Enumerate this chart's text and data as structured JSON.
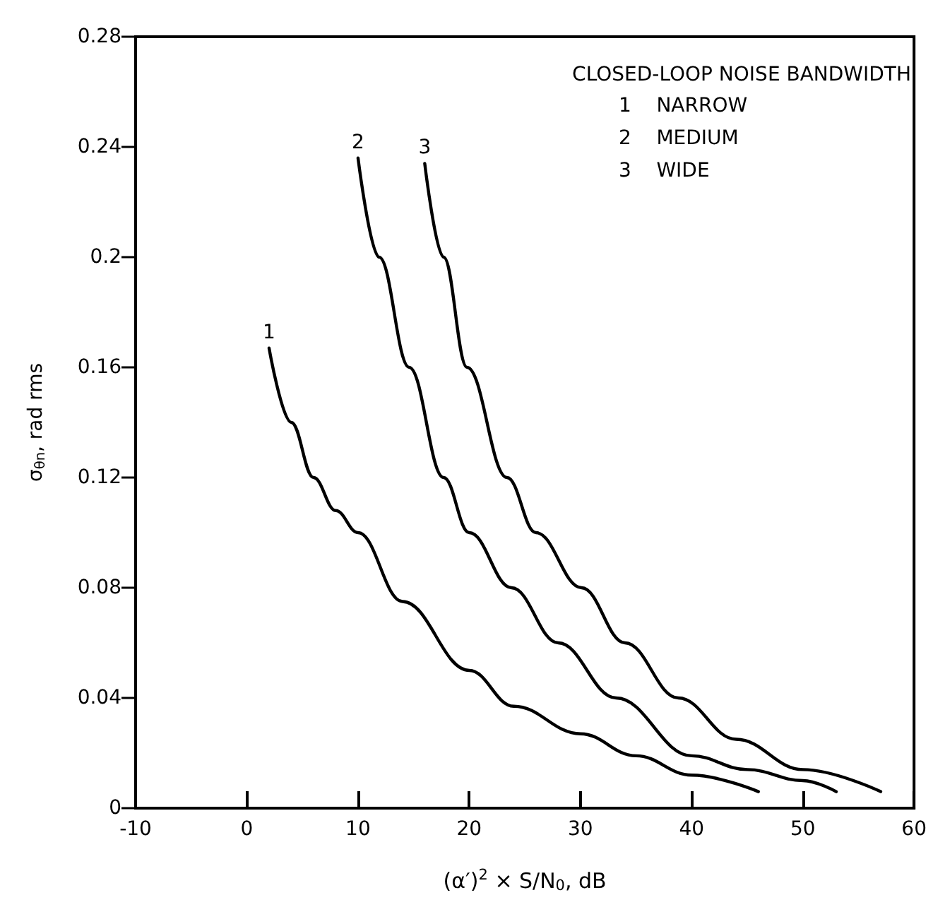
{
  "chart_data": {
    "type": "line",
    "xlabel": "(α′)$^{2}$ × S/N$_{0}$, dB",
    "ylabel": "σ$_{θn}$, rad rms",
    "legend_title": "CLOSED-LOOP NOISE BANDWIDTH",
    "annotations": [
      "1    NARROW",
      "2    MEDIUM",
      "3    WIDE"
    ],
    "xlim": [
      -10,
      60
    ],
    "xticks": [
      -10,
      0,
      10,
      20,
      30,
      40,
      50,
      60
    ],
    "ylim": [
      0,
      0.28
    ],
    "yticks": [
      0,
      0.04,
      0.08,
      0.12,
      0.16,
      0.2,
      0.24,
      0.28
    ],
    "grid": false,
    "legend": false,
    "marker": "none",
    "line_style": "solid",
    "series": [
      {
        "name": "1",
        "color": "#000000",
        "x": [
          2,
          4,
          6,
          8,
          10,
          14,
          20,
          24,
          30,
          35,
          40,
          46
        ],
        "values": [
          0.167,
          0.14,
          0.12,
          0.108,
          0.1,
          0.075,
          0.05,
          0.037,
          0.027,
          0.019,
          0.012,
          0.006
        ]
      },
      {
        "name": "2",
        "color": "#000000",
        "x": [
          10,
          11.9,
          14.6,
          17.7,
          20,
          23.8,
          28,
          33.2,
          40,
          45,
          50,
          53
        ],
        "values": [
          0.236,
          0.2,
          0.16,
          0.12,
          0.1,
          0.08,
          0.06,
          0.04,
          0.019,
          0.014,
          0.01,
          0.006
        ]
      },
      {
        "name": "3",
        "color": "#000000",
        "x": [
          16,
          17.7,
          19.8,
          23.4,
          26,
          30.1,
          34,
          38.8,
          44,
          50,
          57
        ],
        "values": [
          0.234,
          0.2,
          0.16,
          0.12,
          0.1,
          0.08,
          0.06,
          0.04,
          0.025,
          0.014,
          0.006
        ]
      }
    ]
  }
}
